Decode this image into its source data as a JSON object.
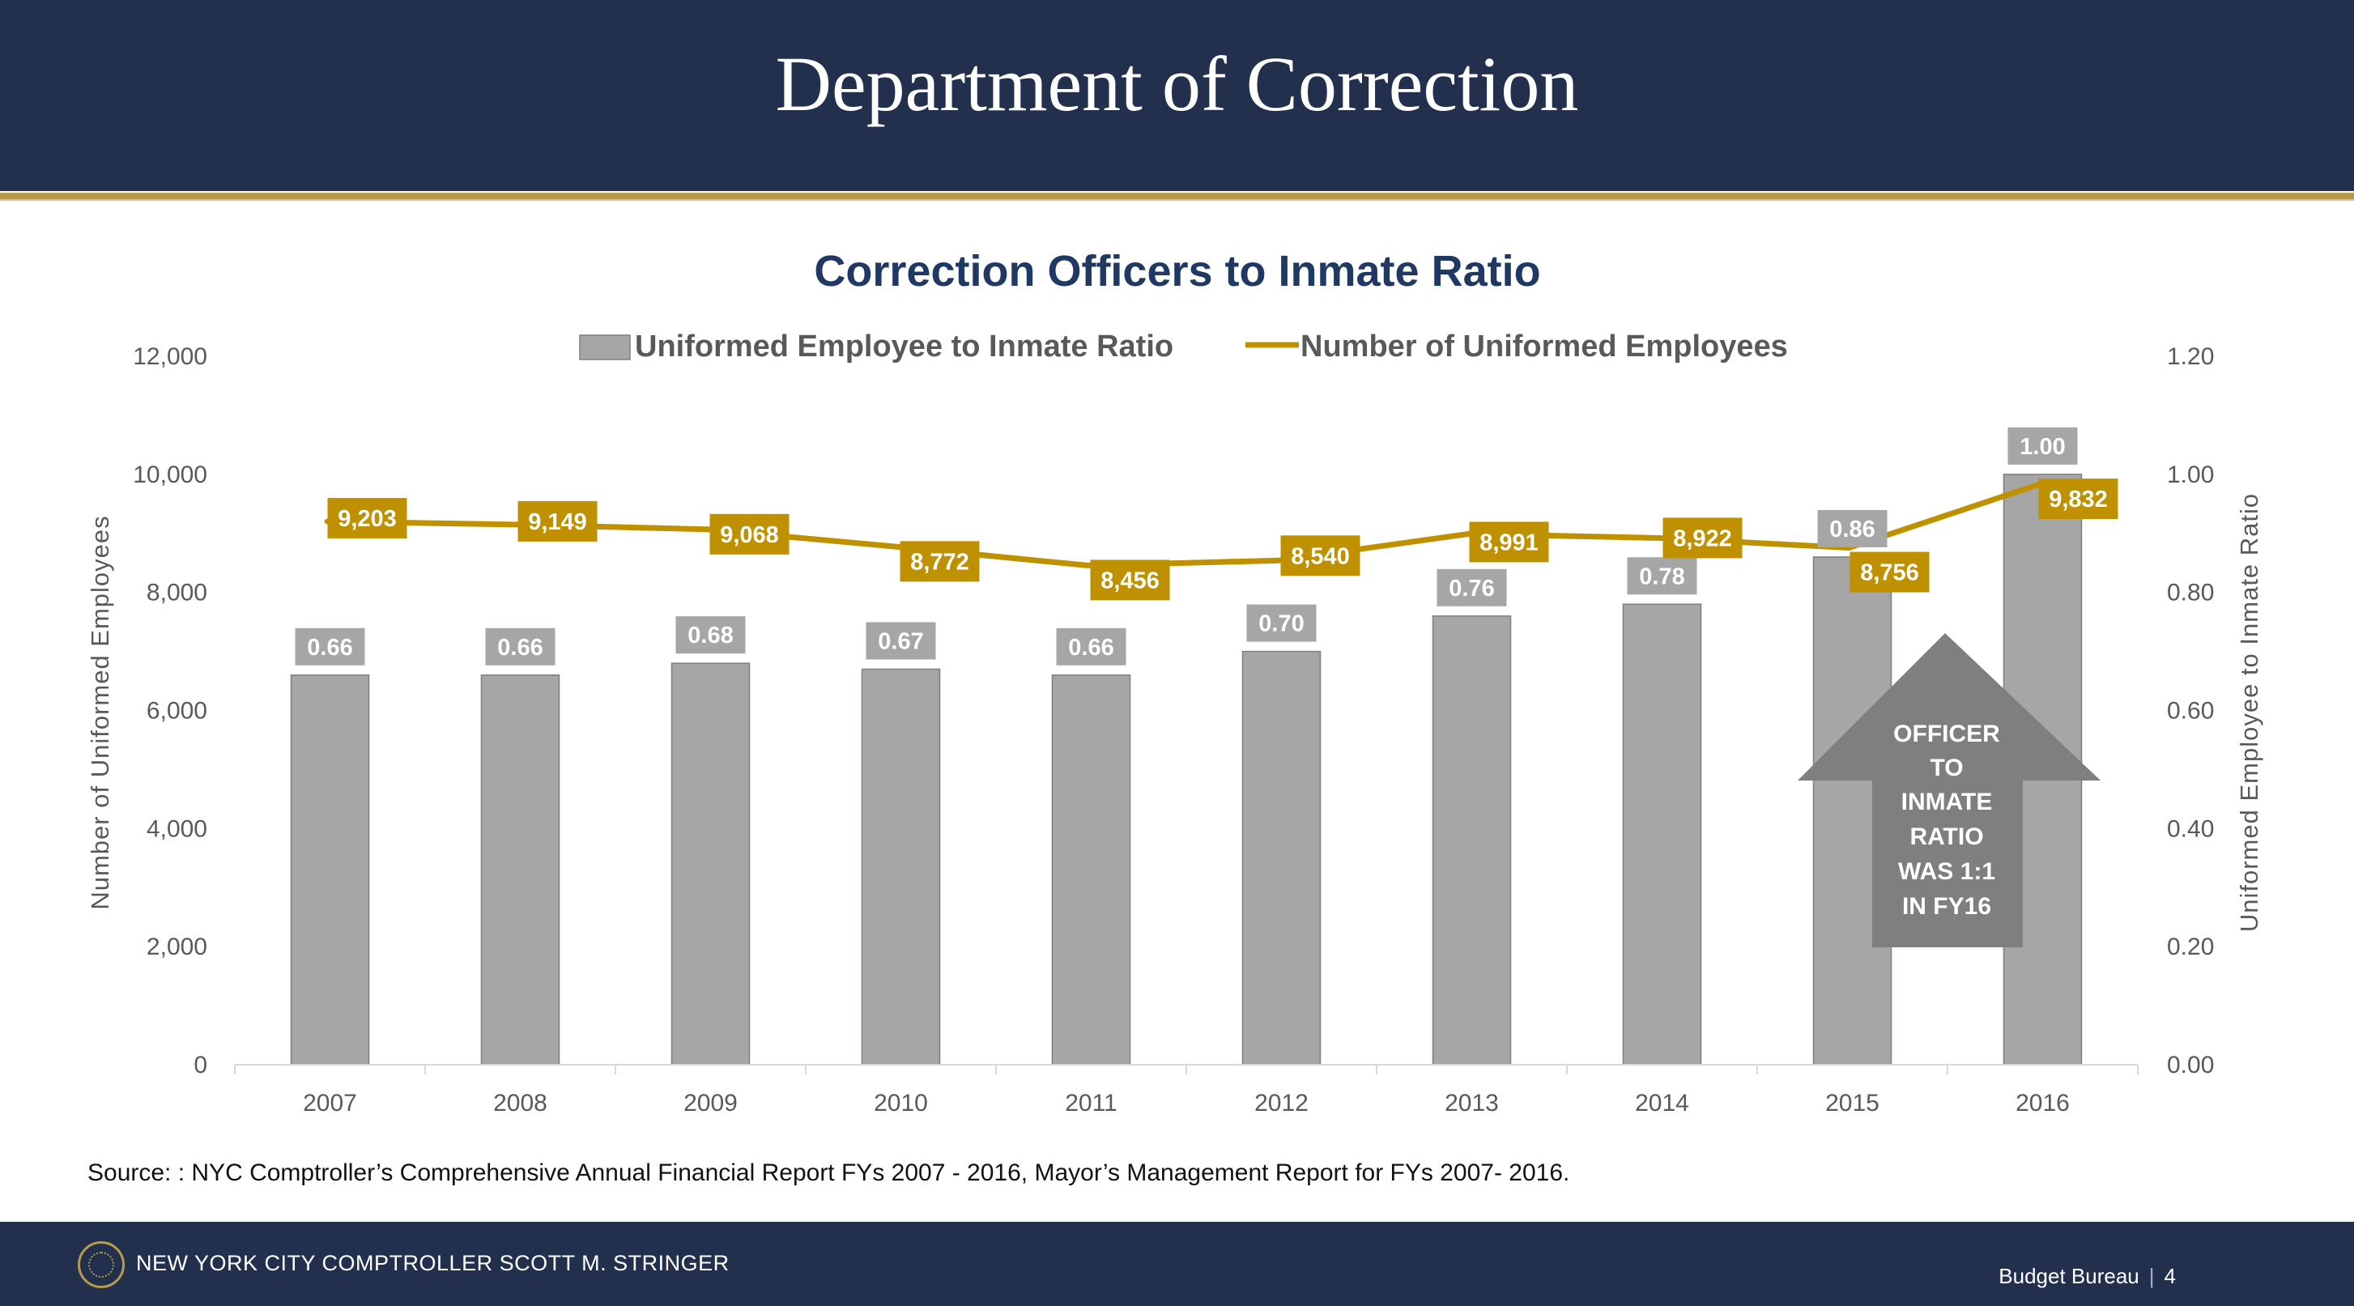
{
  "header": {
    "title": "Department of Correction"
  },
  "footer": {
    "org": "NEW YORK CITY COMPTROLLER SCOTT M. STRINGER",
    "section": "Budget Bureau",
    "page": "4"
  },
  "source_note": "Source: : NYC Comptroller’s Comprehensive Annual Financial Report FYs 2007 - 2016, Mayor’s Management Report for FYs 2007- 2016.",
  "colors": {
    "bar": "#a6a6a6",
    "line": "#bf9000",
    "header": "#22304e",
    "arrow": "#7f7f7f",
    "title": "#1f3864"
  },
  "annotation": {
    "lines": [
      "OFFICER",
      "TO",
      "INMATE",
      "RATIO",
      "WAS 1:1",
      "IN FY16"
    ]
  },
  "chart_data": {
    "type": "bar+line",
    "title": "Correction Officers to Inmate Ratio",
    "categories": [
      "2007",
      "2008",
      "2009",
      "2010",
      "2011",
      "2012",
      "2013",
      "2014",
      "2015",
      "2016"
    ],
    "series": [
      {
        "name": "Uniformed Employee to Inmate Ratio",
        "type": "bar",
        "axis": "right",
        "values": [
          0.66,
          0.66,
          0.68,
          0.67,
          0.66,
          0.7,
          0.76,
          0.78,
          0.86,
          1.0
        ],
        "labels": [
          "0.66",
          "0.66",
          "0.68",
          "0.67",
          "0.66",
          "0.70",
          "0.76",
          "0.78",
          "0.86",
          "1.00"
        ]
      },
      {
        "name": "Number of Uniformed Employees",
        "type": "line",
        "axis": "left",
        "values": [
          9203,
          9149,
          9068,
          8772,
          8456,
          8540,
          8991,
          8922,
          8756,
          9832
        ],
        "labels": [
          "9,203",
          "9,149",
          "9,068",
          "8,772",
          "8,456",
          "8,540",
          "8,991",
          "8,922",
          "8,756",
          "9,832"
        ]
      }
    ],
    "ylabel_left": "Number of Uniformed Employees",
    "ylabel_right": "Uniformed Employee to Inmate Ratio",
    "ylim_left": [
      0,
      12000
    ],
    "ylim_right": [
      0,
      1.2
    ],
    "yticks_left": [
      "0",
      "2,000",
      "4,000",
      "6,000",
      "8,000",
      "10,000",
      "12,000"
    ],
    "yticks_right": [
      "0.00",
      "0.20",
      "0.40",
      "0.60",
      "0.80",
      "1.00",
      "1.20"
    ],
    "gridlines": false,
    "legend_position": "top"
  }
}
